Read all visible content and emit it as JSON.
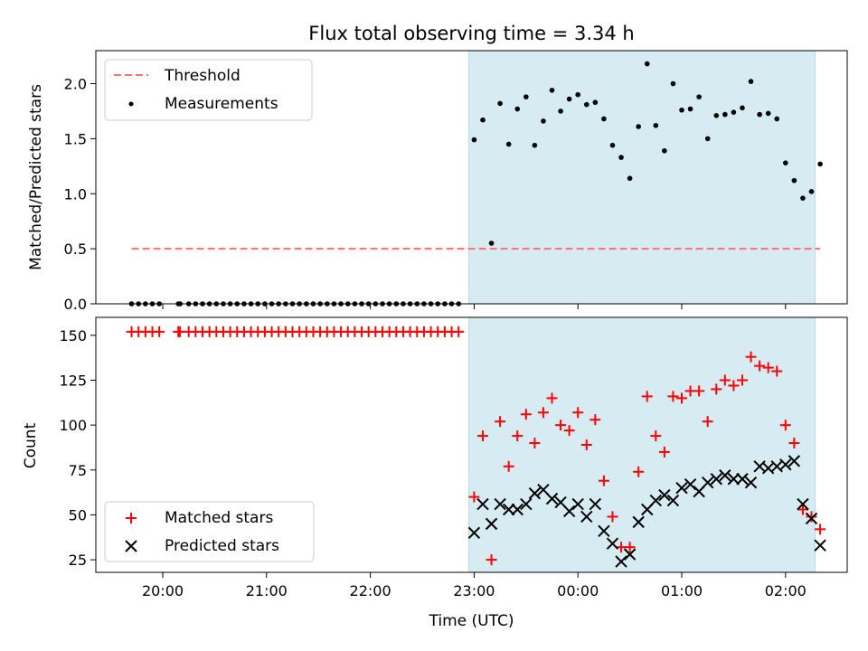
{
  "title": "Flux total observing time = 3.34 h",
  "chart_data": [
    {
      "type": "scatter",
      "ylabel": "Matched/Predicted stars",
      "ylim": [
        0,
        2.3
      ],
      "y_ticks": [
        "0.0",
        "0.5",
        "1.0",
        "1.5",
        "2.0"
      ],
      "threshold": 0.5,
      "legend": {
        "placement": "top-left",
        "entries": [
          "Threshold",
          "Measurements"
        ]
      },
      "shaded_interval": [
        "22:57",
        "02:17"
      ],
      "series": [
        {
          "name": "Measurements",
          "points": [
            [
              "19:42",
              0
            ],
            [
              "19:46",
              0
            ],
            [
              "19:50",
              0
            ],
            [
              "19:54",
              0
            ],
            [
              "19:58",
              0
            ],
            [
              "20:09",
              0
            ],
            [
              "20:10",
              0
            ],
            [
              "20:15",
              0
            ],
            [
              "20:19",
              0
            ],
            [
              "20:23",
              0
            ],
            [
              "20:27",
              0
            ],
            [
              "20:31",
              0
            ],
            [
              "20:35",
              0
            ],
            [
              "20:39",
              0
            ],
            [
              "20:43",
              0
            ],
            [
              "20:47",
              0
            ],
            [
              "20:51",
              0
            ],
            [
              "20:55",
              0
            ],
            [
              "20:59",
              0
            ],
            [
              "21:03",
              0
            ],
            [
              "21:07",
              0
            ],
            [
              "21:11",
              0
            ],
            [
              "21:15",
              0
            ],
            [
              "21:19",
              0
            ],
            [
              "21:23",
              0
            ],
            [
              "21:27",
              0
            ],
            [
              "21:31",
              0
            ],
            [
              "21:35",
              0
            ],
            [
              "21:39",
              0
            ],
            [
              "21:43",
              0
            ],
            [
              "21:47",
              0
            ],
            [
              "21:51",
              0
            ],
            [
              "21:55",
              0
            ],
            [
              "21:59",
              0
            ],
            [
              "22:03",
              0
            ],
            [
              "22:07",
              0
            ],
            [
              "22:11",
              0
            ],
            [
              "22:15",
              0
            ],
            [
              "22:19",
              0
            ],
            [
              "22:23",
              0
            ],
            [
              "22:27",
              0
            ],
            [
              "22:31",
              0
            ],
            [
              "22:35",
              0
            ],
            [
              "22:39",
              0
            ],
            [
              "22:43",
              0
            ],
            [
              "22:47",
              0
            ],
            [
              "22:51",
              0
            ],
            [
              "23:00",
              1.49
            ],
            [
              "23:05",
              1.67
            ],
            [
              "23:10",
              0.55
            ],
            [
              "23:15",
              1.82
            ],
            [
              "23:20",
              1.45
            ],
            [
              "23:25",
              1.77
            ],
            [
              "23:30",
              1.88
            ],
            [
              "23:35",
              1.44
            ],
            [
              "23:40",
              1.66
            ],
            [
              "23:45",
              1.94
            ],
            [
              "23:50",
              1.75
            ],
            [
              "23:55",
              1.86
            ],
            [
              "00:00",
              1.9
            ],
            [
              "00:05",
              1.81
            ],
            [
              "00:10",
              1.83
            ],
            [
              "00:15",
              1.68
            ],
            [
              "00:20",
              1.44
            ],
            [
              "00:25",
              1.33
            ],
            [
              "00:30",
              1.14
            ],
            [
              "00:35",
              1.61
            ],
            [
              "00:40",
              2.18
            ],
            [
              "00:45",
              1.62
            ],
            [
              "00:50",
              1.39
            ],
            [
              "00:55",
              2.0
            ],
            [
              "01:00",
              1.76
            ],
            [
              "01:05",
              1.77
            ],
            [
              "01:10",
              1.88
            ],
            [
              "01:15",
              1.5
            ],
            [
              "01:20",
              1.71
            ],
            [
              "01:25",
              1.72
            ],
            [
              "01:30",
              1.74
            ],
            [
              "01:35",
              1.78
            ],
            [
              "01:40",
              2.02
            ],
            [
              "01:45",
              1.72
            ],
            [
              "01:50",
              1.73
            ],
            [
              "01:55",
              1.68
            ],
            [
              "02:00",
              1.28
            ],
            [
              "02:05",
              1.12
            ],
            [
              "02:10",
              0.96
            ],
            [
              "02:15",
              1.02
            ],
            [
              "02:20",
              1.27
            ]
          ]
        }
      ]
    },
    {
      "type": "scatter",
      "xlabel": "Time (UTC)",
      "ylabel": "Count",
      "ylim": [
        18,
        160
      ],
      "x_ticks": [
        "20:00",
        "21:00",
        "22:00",
        "23:00",
        "00:00",
        "01:00",
        "02:00"
      ],
      "y_ticks": [
        "25",
        "50",
        "75",
        "100",
        "125",
        "150"
      ],
      "legend": {
        "placement": "bottom-left",
        "entries": [
          "Matched stars",
          "Predicted stars"
        ]
      },
      "shaded_interval": [
        "22:57",
        "02:17"
      ],
      "series": [
        {
          "name": "Matched stars",
          "points": [
            [
              "19:42",
              152
            ],
            [
              "19:46",
              152
            ],
            [
              "19:50",
              152
            ],
            [
              "19:54",
              152
            ],
            [
              "19:58",
              152
            ],
            [
              "20:09",
              152
            ],
            [
              "20:10",
              152
            ],
            [
              "20:15",
              152
            ],
            [
              "20:19",
              152
            ],
            [
              "20:23",
              152
            ],
            [
              "20:27",
              152
            ],
            [
              "20:31",
              152
            ],
            [
              "20:35",
              152
            ],
            [
              "20:39",
              152
            ],
            [
              "20:43",
              152
            ],
            [
              "20:47",
              152
            ],
            [
              "20:51",
              152
            ],
            [
              "20:55",
              152
            ],
            [
              "20:59",
              152
            ],
            [
              "21:03",
              152
            ],
            [
              "21:07",
              152
            ],
            [
              "21:11",
              152
            ],
            [
              "21:15",
              152
            ],
            [
              "21:19",
              152
            ],
            [
              "21:23",
              152
            ],
            [
              "21:27",
              152
            ],
            [
              "21:31",
              152
            ],
            [
              "21:35",
              152
            ],
            [
              "21:39",
              152
            ],
            [
              "21:43",
              152
            ],
            [
              "21:47",
              152
            ],
            [
              "21:51",
              152
            ],
            [
              "21:55",
              152
            ],
            [
              "21:59",
              152
            ],
            [
              "22:03",
              152
            ],
            [
              "22:07",
              152
            ],
            [
              "22:11",
              152
            ],
            [
              "22:15",
              152
            ],
            [
              "22:19",
              152
            ],
            [
              "22:23",
              152
            ],
            [
              "22:27",
              152
            ],
            [
              "22:31",
              152
            ],
            [
              "22:35",
              152
            ],
            [
              "22:39",
              152
            ],
            [
              "22:43",
              152
            ],
            [
              "22:47",
              152
            ],
            [
              "22:51",
              152
            ],
            [
              "23:00",
              60
            ],
            [
              "23:05",
              94
            ],
            [
              "23:10",
              25
            ],
            [
              "23:15",
              102
            ],
            [
              "23:20",
              77
            ],
            [
              "23:25",
              94
            ],
            [
              "23:30",
              106
            ],
            [
              "23:35",
              90
            ],
            [
              "23:40",
              107
            ],
            [
              "23:45",
              115
            ],
            [
              "23:50",
              100
            ],
            [
              "23:55",
              97
            ],
            [
              "00:00",
              107
            ],
            [
              "00:05",
              89
            ],
            [
              "00:10",
              103
            ],
            [
              "00:15",
              69
            ],
            [
              "00:20",
              49
            ],
            [
              "00:25",
              32
            ],
            [
              "00:30",
              32
            ],
            [
              "00:35",
              74
            ],
            [
              "00:40",
              116
            ],
            [
              "00:45",
              94
            ],
            [
              "00:50",
              85
            ],
            [
              "00:55",
              116
            ],
            [
              "01:00",
              115
            ],
            [
              "01:05",
              119
            ],
            [
              "01:10",
              119
            ],
            [
              "01:15",
              102
            ],
            [
              "01:20",
              120
            ],
            [
              "01:25",
              125
            ],
            [
              "01:30",
              122
            ],
            [
              "01:35",
              125
            ],
            [
              "01:40",
              138
            ],
            [
              "01:45",
              133
            ],
            [
              "01:50",
              132
            ],
            [
              "01:55",
              130
            ],
            [
              "02:00",
              100
            ],
            [
              "02:05",
              90
            ],
            [
              "02:10",
              53
            ],
            [
              "02:15",
              49
            ],
            [
              "02:20",
              42
            ]
          ]
        },
        {
          "name": "Predicted stars",
          "points": [
            [
              "23:00",
              40
            ],
            [
              "23:05",
              56
            ],
            [
              "23:10",
              45
            ],
            [
              "23:15",
              56
            ],
            [
              "23:20",
              53
            ],
            [
              "23:25",
              53
            ],
            [
              "23:30",
              56
            ],
            [
              "23:35",
              62
            ],
            [
              "23:40",
              64
            ],
            [
              "23:45",
              59
            ],
            [
              "23:50",
              57
            ],
            [
              "23:55",
              52
            ],
            [
              "00:00",
              56
            ],
            [
              "00:05",
              49
            ],
            [
              "00:10",
              56
            ],
            [
              "00:15",
              41
            ],
            [
              "00:20",
              34
            ],
            [
              "00:25",
              24
            ],
            [
              "00:30",
              28
            ],
            [
              "00:35",
              46
            ],
            [
              "00:40",
              53
            ],
            [
              "00:45",
              58
            ],
            [
              "00:50",
              61
            ],
            [
              "00:55",
              58
            ],
            [
              "01:00",
              65
            ],
            [
              "01:05",
              67
            ],
            [
              "01:10",
              63
            ],
            [
              "01:15",
              68
            ],
            [
              "01:20",
              70
            ],
            [
              "01:25",
              72
            ],
            [
              "01:30",
              70
            ],
            [
              "01:35",
              70
            ],
            [
              "01:40",
              68
            ],
            [
              "01:45",
              77
            ],
            [
              "01:50",
              76
            ],
            [
              "01:55",
              77
            ],
            [
              "02:00",
              78
            ],
            [
              "02:05",
              80
            ],
            [
              "02:10",
              56
            ],
            [
              "02:15",
              48
            ],
            [
              "02:20",
              33
            ]
          ]
        }
      ]
    }
  ]
}
